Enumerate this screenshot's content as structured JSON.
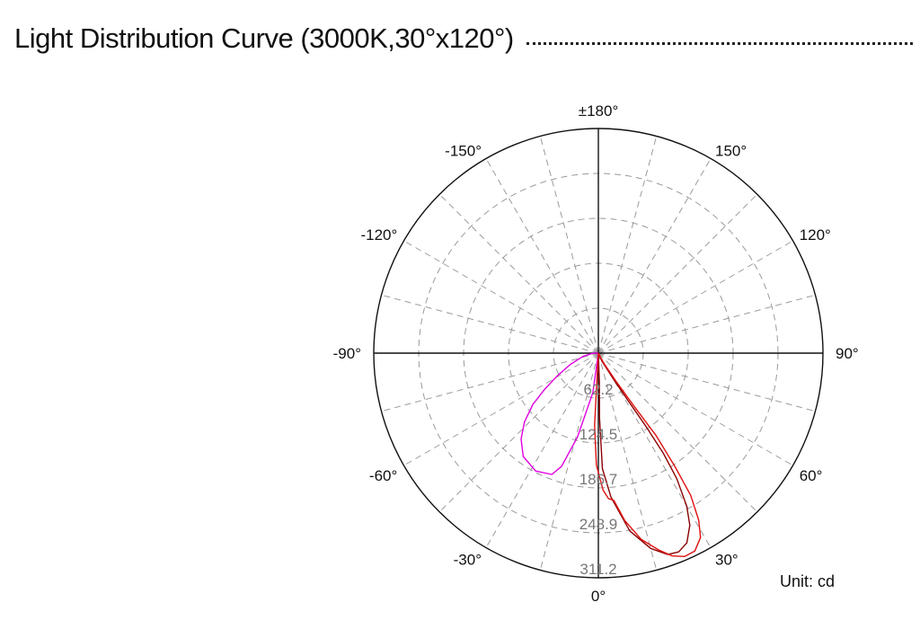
{
  "header": {
    "title": "Light Distribution Curve (3000K,30°x120°)"
  },
  "chart_data": {
    "type": "polar",
    "unit_label": "Unit: cd",
    "angle_labels": [
      {
        "angle": 180,
        "text": "±180°"
      },
      {
        "angle": 150,
        "text": "150°"
      },
      {
        "angle": -150,
        "text": "-150°"
      },
      {
        "angle": 120,
        "text": "120°"
      },
      {
        "angle": -120,
        "text": "-120°"
      },
      {
        "angle": 90,
        "text": "90°"
      },
      {
        "angle": -90,
        "text": "-90°"
      },
      {
        "angle": 60,
        "text": "60°"
      },
      {
        "angle": -60,
        "text": "-60°"
      },
      {
        "angle": 30,
        "text": "30°"
      },
      {
        "angle": -30,
        "text": "-30°"
      },
      {
        "angle": 0,
        "text": "0°"
      }
    ],
    "rings": [
      {
        "value": 62.2,
        "text": "62.2"
      },
      {
        "value": 124.5,
        "text": "124.5"
      },
      {
        "value": 186.7,
        "text": "186.7"
      },
      {
        "value": 248.9,
        "text": "248.9"
      },
      {
        "value": 311.2,
        "text": "311.2"
      }
    ],
    "r_max": 311.2,
    "spoke_step_deg": 15,
    "series": [
      {
        "color": "#e000e0",
        "points": [
          [
            0,
            0
          ],
          [
            -8,
            55
          ],
          [
            -14,
            120
          ],
          [
            -18,
            165
          ],
          [
            -21,
            180
          ],
          [
            -28,
            185
          ],
          [
            -36,
            177
          ],
          [
            -42,
            160
          ],
          [
            -47,
            140
          ],
          [
            -52,
            115
          ],
          [
            -56,
            90
          ],
          [
            -61,
            65
          ],
          [
            -68,
            42
          ],
          [
            -78,
            22
          ],
          [
            -88,
            8
          ],
          [
            -95,
            0
          ]
        ]
      },
      {
        "color": "#8b0000",
        "points": [
          [
            4,
            0
          ],
          [
            2,
            40
          ],
          [
            1,
            90
          ],
          [
            2,
            160
          ],
          [
            5,
            200
          ],
          [
            10,
            250
          ],
          [
            15,
            280
          ],
          [
            19,
            295
          ],
          [
            22,
            297
          ],
          [
            25,
            290
          ],
          [
            28,
            270
          ],
          [
            30,
            245
          ],
          [
            32,
            205
          ],
          [
            33,
            165
          ],
          [
            33,
            120
          ],
          [
            32,
            75
          ],
          [
            30,
            40
          ],
          [
            24,
            12
          ],
          [
            4,
            0
          ]
        ]
      },
      {
        "color": "#e01010",
        "points": [
          [
            -2,
            0
          ],
          [
            -3,
            40
          ],
          [
            -3,
            100
          ],
          [
            -1,
            155
          ],
          [
            2,
            190
          ],
          [
            4,
            202
          ],
          [
            6,
            205
          ],
          [
            9,
            235
          ],
          [
            13,
            265
          ],
          [
            17,
            285
          ],
          [
            20,
            299
          ],
          [
            23,
            306
          ],
          [
            26,
            305
          ],
          [
            29,
            292
          ],
          [
            31,
            270
          ],
          [
            33,
            235
          ],
          [
            34,
            190
          ],
          [
            35,
            140
          ],
          [
            34,
            90
          ],
          [
            32,
            45
          ],
          [
            28,
            15
          ],
          [
            -2,
            0
          ]
        ]
      }
    ]
  }
}
